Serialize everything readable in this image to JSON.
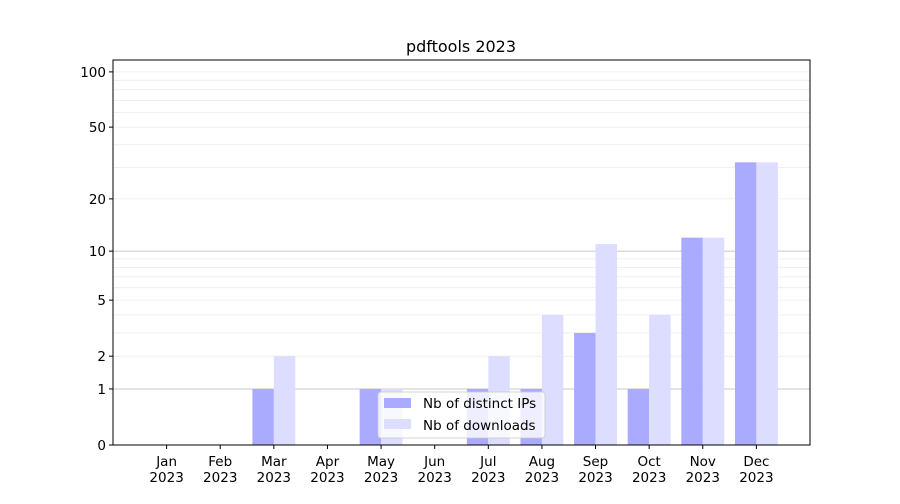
{
  "chart_data": {
    "type": "bar",
    "title": "pdftools 2023",
    "xlabel": "",
    "ylabel": "",
    "yscale": "log(1+y)",
    "ylim": [
      0,
      116
    ],
    "yticks": [
      0,
      1,
      2,
      5,
      10,
      20,
      50,
      100
    ],
    "grid": true,
    "legend_position": "lower center",
    "categories": [
      "Jan\n2023",
      "Feb\n2023",
      "Mar\n2023",
      "Apr\n2023",
      "May\n2023",
      "Jun\n2023",
      "Jul\n2023",
      "Aug\n2023",
      "Sep\n2023",
      "Oct\n2023",
      "Nov\n2023",
      "Dec\n2023"
    ],
    "series": [
      {
        "name": "Nb of distinct IPs",
        "color": "#aaaaff",
        "values": [
          0,
          0,
          1,
          0,
          1,
          0,
          1,
          1,
          3,
          1,
          12,
          32
        ]
      },
      {
        "name": "Nb of downloads",
        "color": "#ddddff",
        "values": [
          0,
          0,
          2,
          0,
          1,
          0,
          2,
          4,
          11,
          4,
          12,
          32
        ]
      }
    ]
  }
}
